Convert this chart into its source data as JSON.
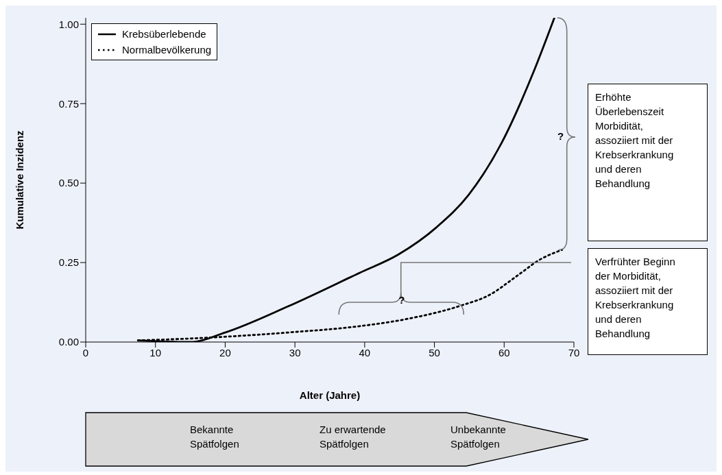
{
  "chart_data": {
    "type": "line",
    "xlabel": "Alter (Jahre)",
    "ylabel": "Kumulative Inzidenz",
    "xlim": [
      0,
      70
    ],
    "xticks": [
      0,
      10,
      20,
      30,
      40,
      50,
      60,
      70
    ],
    "ylim": [
      0,
      1.02
    ],
    "yticks": [
      {
        "value": 0,
        "label": "0.00"
      },
      {
        "value": 0.25,
        "label": "0.25"
      },
      {
        "value": 0.5,
        "label": "0.50"
      },
      {
        "value": 0.75,
        "label": "0.75"
      },
      {
        "value": 1,
        "label": "1.00"
      }
    ],
    "grid": false,
    "legend": "top left",
    "marker": "none",
    "series": [
      {
        "name": "Krebsüberlebende",
        "color": "#000000",
        "line_style": "solid",
        "x": [
          7.5,
          15,
          20,
          29,
          39.3,
          44.8,
          50.3,
          54.9,
          59.6,
          64.2,
          67.2
        ],
        "values": [
          0.005,
          0,
          0.03,
          0.112,
          0.218,
          0.275,
          0.361,
          0.463,
          0.625,
          0.849,
          1.02
        ]
      },
      {
        "name": "Normalbevölkerung",
        "color": "#000000",
        "line_style": "dotted",
        "x": [
          7.5,
          15,
          29,
          39.3,
          45.7,
          54,
          57.8,
          61.9,
          65.1,
          68.3
        ],
        "values": [
          0.005,
          0.011,
          0.03,
          0.05,
          0.071,
          0.116,
          0.147,
          0.209,
          0.259,
          0.29
        ]
      }
    ],
    "annotations": [
      "?",
      "?",
      "Erhöhte Überlebenszeit Morbidität, assoziiert mit der Krebserkrankung und deren Behandlung",
      "Verfrühter Beginn der Morbidität, assoziiert mit der Krebserkrankung und deren Behandlung",
      "Bekannte Spätfolgen",
      "Zu erwartende Spätfolgen",
      "Unbekannte Spätfolgen"
    ]
  }
}
